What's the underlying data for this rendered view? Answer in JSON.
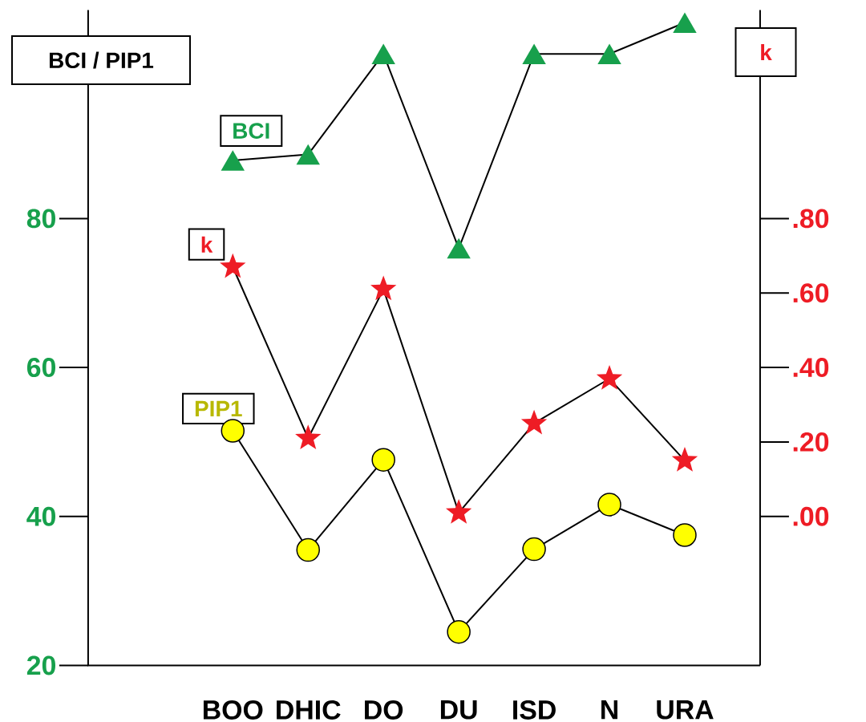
{
  "chart_data": {
    "type": "line",
    "categories": [
      "BOO",
      "DHIC",
      "DO",
      "DU",
      "ISD",
      "N",
      "URA"
    ],
    "ylabel": "BCI / PIP1",
    "y2label": "k",
    "ylim": [
      20,
      108
    ],
    "yticks": [
      20,
      40,
      60,
      80
    ],
    "y2lim": [
      -0.4,
      1.36
    ],
    "y2ticks": [
      {
        "value": 0,
        "label": ".00"
      },
      {
        "value": 0.2,
        "label": ".20"
      },
      {
        "value": 0.4,
        "label": ".40"
      },
      {
        "value": 0.6,
        "label": ".60"
      },
      {
        "value": 0.8,
        "label": ".80"
      }
    ],
    "series": [
      {
        "name": "BCI",
        "color": "#17a04c",
        "marker": "triangle",
        "values": [
          87.8,
          88.6,
          102.1,
          76.0,
          102.1,
          102.1,
          106.3
        ]
      },
      {
        "name": "k",
        "color": "#ee1c25",
        "marker": "star",
        "axis": "y2",
        "values": [
          0.67,
          0.21,
          0.61,
          0.01,
          0.25,
          0.37,
          0.15
        ]
      },
      {
        "name": "PIP1",
        "color": "#ffff00",
        "marker": "circle",
        "values": [
          51.5,
          35.5,
          47.6,
          24.5,
          35.6,
          41.6,
          37.5
        ]
      }
    ]
  }
}
